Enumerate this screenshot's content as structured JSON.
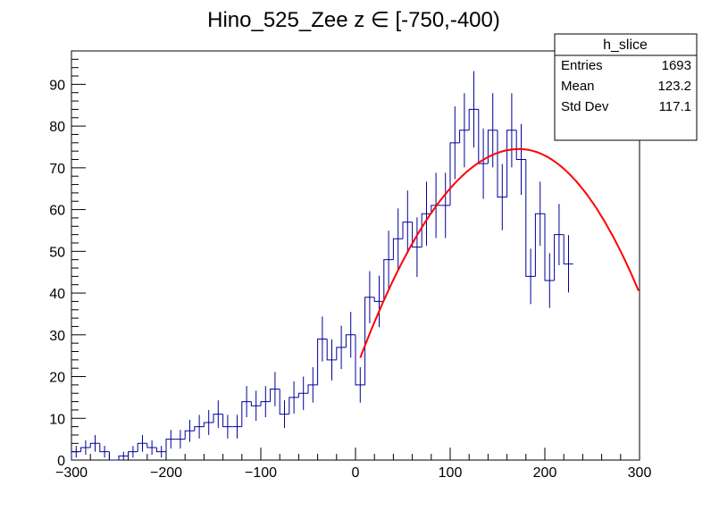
{
  "chart_data": {
    "type": "bar",
    "histtype": "step",
    "title": "Hino_525_Zee z  ∈ [-750,-400)",
    "xlabel": "",
    "ylabel": "",
    "xlim": [
      -300,
      300
    ],
    "ylim": [
      0,
      98
    ],
    "x_ticks": [
      -300,
      -200,
      -100,
      0,
      100,
      200,
      300
    ],
    "y_ticks": [
      0,
      10,
      20,
      30,
      40,
      50,
      60,
      70,
      80,
      90
    ],
    "bin_width": 10,
    "bin_edges_start": -300,
    "values": [
      2,
      3,
      4,
      2,
      0,
      1,
      2,
      4,
      3,
      2,
      5,
      5,
      7,
      8,
      9,
      11,
      8,
      8,
      14,
      13,
      14,
      17,
      11,
      15,
      16,
      18,
      29,
      24,
      27,
      30,
      18,
      39,
      38,
      48,
      53,
      57,
      51,
      59,
      61,
      61,
      76,
      79,
      84,
      71,
      79,
      63,
      79,
      72,
      44,
      59,
      43,
      54,
      47
    ],
    "series": [
      {
        "name": "h_slice",
        "color": "#000099"
      }
    ],
    "fit": {
      "name": "fit",
      "color": "#ff0000",
      "x_range": [
        5,
        300
      ],
      "peak_x": 173,
      "peak_y": 74.5,
      "y_at_left": 24.5,
      "y_at_right": 40
    },
    "stats_box": {
      "title": "h_slice",
      "rows": [
        {
          "label": "Entries",
          "value": "1693"
        },
        {
          "label": "Mean",
          "value": "123.2"
        },
        {
          "label": "Std Dev",
          "value": "117.1"
        }
      ]
    },
    "axis_line_color": "#000000"
  }
}
